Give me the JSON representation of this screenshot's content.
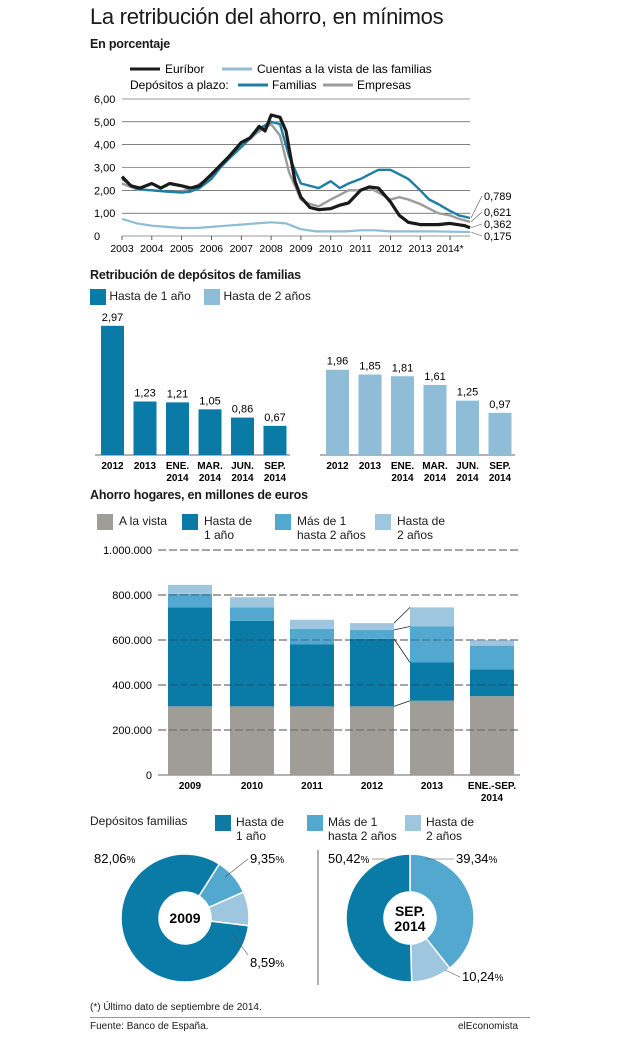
{
  "title": "La retribución del ahorro, en mínimos",
  "subtitle": "En porcentaje",
  "colors": {
    "euribor": "#1a1a1a",
    "vista": "#8fbcd6",
    "familias": "#1c7fa3",
    "empresas": "#9c9c9c",
    "dark": "#0a7ba6",
    "light": "#8fbcd6",
    "grey": "#a09c97",
    "mid": "#52a8cf",
    "pale": "#9ec6df"
  },
  "chart_data": [
    {
      "type": "line",
      "title": "En porcentaje",
      "legend": {
        "euribor": "Euríbor",
        "vista": "Cuentas a la vista de las familias",
        "plazo": "Depósitos a plazo:",
        "familias": "Familias",
        "empresas": "Empresas"
      },
      "ylim": [
        0,
        6
      ],
      "yticks": [
        "6,00",
        "5,00",
        "4,00",
        "3,00",
        "2,00",
        "1,00",
        "0"
      ],
      "yvals": [
        6,
        5,
        4,
        3,
        2,
        1,
        0
      ],
      "xticks": [
        "2003",
        "2004",
        "2005",
        "2006",
        "2007",
        "2008",
        "2009",
        "2010",
        "2011",
        "2012",
        "2013",
        "2014*"
      ],
      "end_labels": [
        "0,789",
        "0,621",
        "0,362",
        "0,175"
      ],
      "series": [
        {
          "name": "Euríbor",
          "x": [
            2003,
            2003.3,
            2003.6,
            2004,
            2004.3,
            2004.6,
            2005,
            2005.3,
            2005.6,
            2006,
            2006.3,
            2006.6,
            2007,
            2007.3,
            2007.6,
            2007.8,
            2008,
            2008.3,
            2008.5,
            2008.8,
            2009,
            2009.3,
            2009.6,
            2010,
            2010.3,
            2010.6,
            2011,
            2011.3,
            2011.6,
            2012,
            2012.3,
            2012.6,
            2013,
            2013.3,
            2013.6,
            2014,
            2014.5,
            2014.67
          ],
          "y": [
            2.6,
            2.2,
            2.1,
            2.3,
            2.1,
            2.3,
            2.2,
            2.1,
            2.2,
            2.7,
            3.1,
            3.5,
            4.1,
            4.3,
            4.8,
            4.6,
            5.3,
            5.2,
            4.6,
            2.4,
            1.7,
            1.25,
            1.15,
            1.2,
            1.35,
            1.45,
            2.0,
            2.15,
            2.1,
            1.5,
            0.9,
            0.6,
            0.5,
            0.5,
            0.5,
            0.55,
            0.45,
            0.362
          ]
        },
        {
          "name": "Cuentas a la vista de las familias",
          "x": [
            2003,
            2003.5,
            2004,
            2004.5,
            2005,
            2005.5,
            2006,
            2006.5,
            2007,
            2007.5,
            2008,
            2008.5,
            2009,
            2009.5,
            2010,
            2010.5,
            2011,
            2011.5,
            2012,
            2012.5,
            2013,
            2013.5,
            2014,
            2014.67
          ],
          "y": [
            0.75,
            0.55,
            0.45,
            0.4,
            0.35,
            0.35,
            0.4,
            0.45,
            0.5,
            0.55,
            0.6,
            0.55,
            0.3,
            0.2,
            0.2,
            0.2,
            0.25,
            0.25,
            0.2,
            0.2,
            0.2,
            0.2,
            0.19,
            0.175
          ]
        },
        {
          "name": "Familias",
          "x": [
            2003,
            2003.5,
            2004,
            2004.5,
            2005,
            2005.3,
            2005.6,
            2006,
            2006.3,
            2006.6,
            2007,
            2007.3,
            2007.6,
            2008,
            2008.3,
            2008.6,
            2009,
            2009.3,
            2009.6,
            2010,
            2010.3,
            2010.6,
            2011,
            2011.3,
            2011.6,
            2012,
            2012.3,
            2012.6,
            2013,
            2013.3,
            2013.6,
            2014,
            2014.3,
            2014.67
          ],
          "y": [
            2.5,
            2.05,
            2.0,
            1.95,
            1.9,
            1.95,
            2.1,
            2.5,
            3.0,
            3.4,
            3.9,
            4.3,
            4.7,
            5.0,
            4.9,
            3.5,
            2.3,
            2.2,
            2.1,
            2.4,
            2.1,
            2.3,
            2.5,
            2.7,
            2.9,
            2.9,
            2.7,
            2.5,
            2.0,
            1.6,
            1.4,
            1.1,
            0.9,
            0.789
          ]
        },
        {
          "name": "Empresas",
          "x": [
            2003,
            2003.5,
            2004,
            2004.5,
            2005,
            2005.5,
            2006,
            2006.5,
            2007,
            2007.5,
            2008,
            2008.3,
            2008.6,
            2009,
            2009.3,
            2009.6,
            2010,
            2010.3,
            2010.6,
            2011,
            2011.3,
            2011.6,
            2012,
            2012.3,
            2012.6,
            2013,
            2013.3,
            2013.6,
            2014,
            2014.3,
            2014.67
          ],
          "y": [
            2.3,
            2.05,
            2.0,
            1.95,
            1.95,
            2.2,
            2.6,
            3.3,
            3.9,
            4.5,
            4.9,
            4.4,
            2.8,
            1.6,
            1.4,
            1.3,
            1.6,
            1.8,
            2.0,
            2.0,
            2.1,
            1.9,
            1.6,
            1.7,
            1.6,
            1.4,
            1.2,
            1.0,
            0.9,
            0.75,
            0.621
          ]
        }
      ]
    },
    {
      "type": "bar",
      "title": "Retribución de depósitos de familias",
      "series": [
        {
          "name": "Hasta de 1 año",
          "categories": [
            "2012",
            "2013",
            "ENE. 2014",
            "MAR. 2014",
            "JUN. 2014",
            "SEP. 2014"
          ],
          "values": [
            2.97,
            1.23,
            1.21,
            1.05,
            0.86,
            0.67
          ],
          "labels": [
            "2,97",
            "1,23",
            "1,21",
            "1,05",
            "0,86",
            "0,67"
          ]
        },
        {
          "name": "Hasta de 2 años",
          "categories": [
            "2012",
            "2013",
            "ENE. 2014",
            "MAR. 2014",
            "JUN. 2014",
            "SEP. 2014"
          ],
          "values": [
            1.96,
            1.85,
            1.81,
            1.61,
            1.25,
            0.97
          ],
          "labels": [
            "1,96",
            "1,85",
            "1,81",
            "1,61",
            "1,25",
            "0,97"
          ]
        }
      ]
    },
    {
      "type": "bar",
      "title": "Ahorro hogares, en millones de euros",
      "categories": [
        "2009",
        "2010",
        "2011",
        "2012",
        "2013",
        "ENE.-SEP. 2014"
      ],
      "ylim": [
        0,
        1000000
      ],
      "yticks": [
        "1.000.000",
        "800.000",
        "600.000",
        "400.000",
        "200.000",
        "0"
      ],
      "yvals": [
        1000000,
        800000,
        600000,
        400000,
        200000,
        0
      ],
      "series": [
        {
          "name": "A la vista",
          "values": [
            305000,
            305000,
            305000,
            305000,
            330000,
            350000
          ]
        },
        {
          "name": "Hasta de 1 año",
          "values": [
            440000,
            380000,
            275000,
            300000,
            170000,
            120000
          ]
        },
        {
          "name": "Más de 1 hasta 2 años",
          "values": [
            60000,
            60000,
            70000,
            40000,
            160000,
            105000
          ]
        },
        {
          "name": "Hasta de 2 años",
          "values": [
            40000,
            45000,
            40000,
            30000,
            85000,
            25000
          ]
        }
      ]
    },
    {
      "type": "pie",
      "title": "Depósitos familias",
      "legend": [
        "Hasta de 1 año",
        "Más de 1 hasta 2 años",
        "Hasta de 2 años"
      ],
      "charts": [
        {
          "label": "2009",
          "values": [
            82.06,
            9.35,
            8.59
          ],
          "labels": [
            "82,06",
            "9,35",
            "8,59"
          ]
        },
        {
          "label": "SEP. 2014",
          "values": [
            50.42,
            39.34,
            10.24
          ],
          "labels": [
            "50,42",
            "39,34",
            "10,24"
          ]
        }
      ]
    }
  ],
  "text": {
    "s2_title": "Retribución de depósitos de familias",
    "s2_leg1": "Hasta de 1 año",
    "s2_leg2": "Hasta de 2 años",
    "s3_title": "Ahorro hogares, en millones de euros",
    "s3_leg1": "A la vista",
    "s3_leg2a": "Hasta de",
    "s3_leg2b": "1 año",
    "s3_leg3a": "Más de 1",
    "s3_leg3b": "hasta 2 años",
    "s3_leg4a": "Hasta de",
    "s3_leg4b": "2 años",
    "s4_title": "Depósitos familias",
    "s4_leg1a": "Hasta de",
    "s4_leg1b": "1 año",
    "s4_leg2a": "Más de 1",
    "s4_leg2b": "hasta 2 años",
    "s4_leg3a": "Hasta de",
    "s4_leg3b": "2 años",
    "pct": "%",
    "footnote": "(*) Último dato de septiembre de 2014.",
    "source": "Fuente: Banco de España.",
    "brand": "elEconomista"
  }
}
